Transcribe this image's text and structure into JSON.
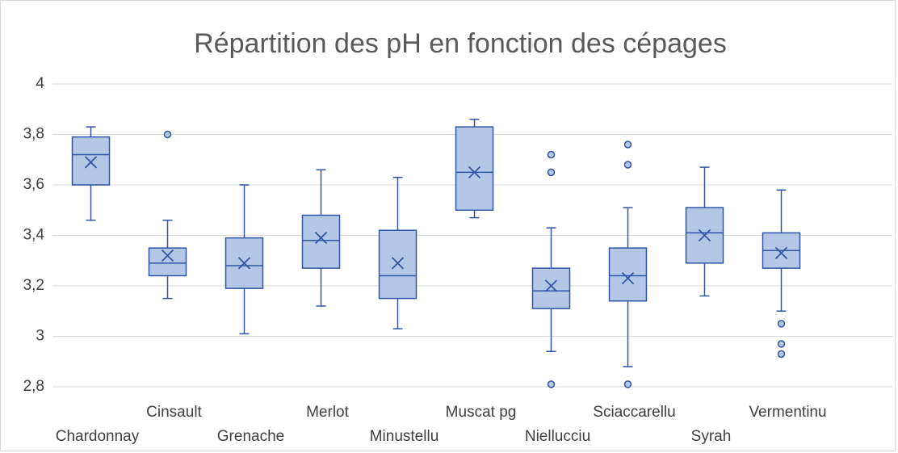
{
  "chart_data": {
    "type": "box",
    "title": "Répartition des pH en fonction des cépages",
    "categories": [
      "Chardonnay",
      "Cinsault",
      "Grenache",
      "Merlot",
      "Minustellu",
      "Muscat pg",
      "Niellucciu",
      "Sciaccarellu",
      "Syrah",
      "Vermentinu"
    ],
    "boxes": [
      {
        "min": 3.46,
        "q1": 3.6,
        "median": 3.72,
        "q3": 3.79,
        "max": 3.83,
        "mean": 3.69,
        "outliers": []
      },
      {
        "min": 3.15,
        "q1": 3.24,
        "median": 3.29,
        "q3": 3.35,
        "max": 3.46,
        "mean": 3.32,
        "outliers": [
          3.8
        ]
      },
      {
        "min": 3.01,
        "q1": 3.19,
        "median": 3.28,
        "q3": 3.39,
        "max": 3.6,
        "mean": 3.29,
        "outliers": []
      },
      {
        "min": 3.12,
        "q1": 3.27,
        "median": 3.38,
        "q3": 3.48,
        "max": 3.66,
        "mean": 3.39,
        "outliers": []
      },
      {
        "min": 3.03,
        "q1": 3.15,
        "median": 3.24,
        "q3": 3.42,
        "max": 3.63,
        "mean": 3.29,
        "outliers": []
      },
      {
        "min": 3.47,
        "q1": 3.5,
        "median": 3.65,
        "q3": 3.83,
        "max": 3.86,
        "mean": 3.65,
        "outliers": []
      },
      {
        "min": 2.94,
        "q1": 3.11,
        "median": 3.18,
        "q3": 3.27,
        "max": 3.43,
        "mean": 3.2,
        "outliers": [
          3.72,
          3.65,
          2.81
        ]
      },
      {
        "min": 2.88,
        "q1": 3.14,
        "median": 3.24,
        "q3": 3.35,
        "max": 3.51,
        "mean": 3.23,
        "outliers": [
          3.76,
          3.68,
          2.81
        ]
      },
      {
        "min": 3.16,
        "q1": 3.29,
        "median": 3.41,
        "q3": 3.51,
        "max": 3.67,
        "mean": 3.4,
        "outliers": []
      },
      {
        "min": 3.1,
        "q1": 3.27,
        "median": 3.34,
        "q3": 3.41,
        "max": 3.58,
        "mean": 3.33,
        "outliers": [
          3.05,
          2.97,
          2.93
        ]
      }
    ],
    "ylim": [
      2.8,
      4
    ],
    "yticks": [
      {
        "value": 2.8,
        "label": "2,8"
      },
      3,
      {
        "value": 3.2,
        "label": "3,2"
      },
      {
        "value": 3.4,
        "label": "3,4"
      },
      {
        "value": 3.6,
        "label": "3,6"
      },
      {
        "value": 3.8,
        "label": "3,8"
      },
      4
    ],
    "grid": true,
    "color": "#b4c7e7",
    "edge_color": "#2f55a4"
  }
}
